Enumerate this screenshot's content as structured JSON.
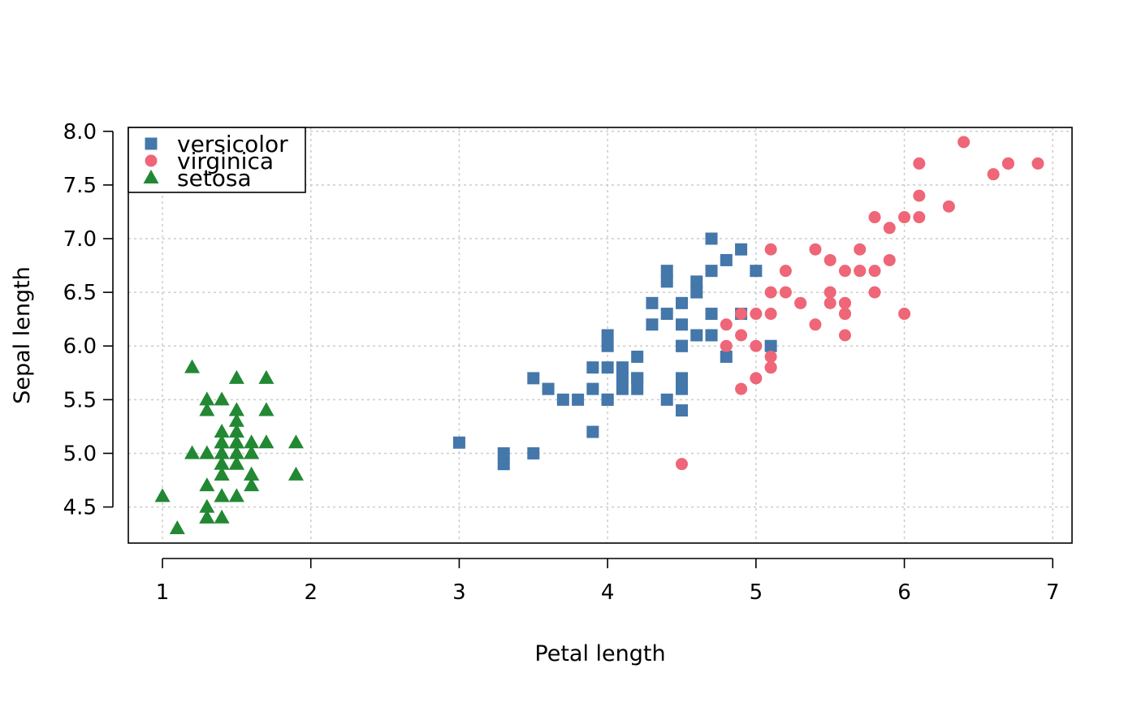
{
  "chart_data": {
    "type": "scatter",
    "title": "",
    "xlabel": "Petal length",
    "ylabel": "Sepal length",
    "xlim": [
      0.77,
      7.13
    ],
    "ylim": [
      4.164,
      8.036
    ],
    "xticks": [
      1,
      2,
      3,
      4,
      5,
      6,
      7
    ],
    "xtick_labels": [
      "1",
      "2",
      "3",
      "4",
      "5",
      "6",
      "7"
    ],
    "yticks": [
      4.5,
      5.0,
      5.5,
      6.0,
      6.5,
      7.0,
      7.5,
      8.0
    ],
    "ytick_labels": [
      "4.5",
      "5.0",
      "5.5",
      "6.0",
      "6.5",
      "7.0",
      "7.5",
      "8.0"
    ],
    "grid": true,
    "legend": {
      "position": "top-left",
      "entries": [
        "versicolor",
        "virginica",
        "setosa"
      ]
    },
    "series": [
      {
        "name": "versicolor",
        "marker": "square",
        "color": "#4477aa",
        "points": [
          [
            4.7,
            7.0
          ],
          [
            4.5,
            6.4
          ],
          [
            4.9,
            6.9
          ],
          [
            4.0,
            5.5
          ],
          [
            4.6,
            6.5
          ],
          [
            4.5,
            5.7
          ],
          [
            4.7,
            6.3
          ],
          [
            3.3,
            4.9
          ],
          [
            4.6,
            6.6
          ],
          [
            3.9,
            5.2
          ],
          [
            3.5,
            5.0
          ],
          [
            4.2,
            5.9
          ],
          [
            4.0,
            6.0
          ],
          [
            4.7,
            6.1
          ],
          [
            3.6,
            5.6
          ],
          [
            4.4,
            6.7
          ],
          [
            4.5,
            5.6
          ],
          [
            4.1,
            5.8
          ],
          [
            4.5,
            6.2
          ],
          [
            3.9,
            5.6
          ],
          [
            4.8,
            5.9
          ],
          [
            4.0,
            6.1
          ],
          [
            4.9,
            6.3
          ],
          [
            4.7,
            6.1
          ],
          [
            4.3,
            6.4
          ],
          [
            4.4,
            6.6
          ],
          [
            4.8,
            6.8
          ],
          [
            5.0,
            6.7
          ],
          [
            4.5,
            6.0
          ],
          [
            3.5,
            5.7
          ],
          [
            3.8,
            5.5
          ],
          [
            3.7,
            5.5
          ],
          [
            3.9,
            5.8
          ],
          [
            5.1,
            6.0
          ],
          [
            4.5,
            5.4
          ],
          [
            4.5,
            6.0
          ],
          [
            4.7,
            6.7
          ],
          [
            4.4,
            6.3
          ],
          [
            4.1,
            5.6
          ],
          [
            4.0,
            5.5
          ],
          [
            4.4,
            5.5
          ],
          [
            4.6,
            6.1
          ],
          [
            4.0,
            5.8
          ],
          [
            3.3,
            5.0
          ],
          [
            4.2,
            5.6
          ],
          [
            4.2,
            5.7
          ],
          [
            4.2,
            5.7
          ],
          [
            4.3,
            6.2
          ],
          [
            3.0,
            5.1
          ],
          [
            4.1,
            5.7
          ]
        ]
      },
      {
        "name": "virginica",
        "marker": "circle",
        "color": "#ee6677",
        "points": [
          [
            6.0,
            6.3
          ],
          [
            5.1,
            5.8
          ],
          [
            5.9,
            7.1
          ],
          [
            5.6,
            6.3
          ],
          [
            5.8,
            6.5
          ],
          [
            6.6,
            7.6
          ],
          [
            4.5,
            4.9
          ],
          [
            6.3,
            7.3
          ],
          [
            5.8,
            6.7
          ],
          [
            6.1,
            7.2
          ],
          [
            5.1,
            6.5
          ],
          [
            5.3,
            6.4
          ],
          [
            5.5,
            6.8
          ],
          [
            5.0,
            5.7
          ],
          [
            5.1,
            5.8
          ],
          [
            5.3,
            6.4
          ],
          [
            5.5,
            6.5
          ],
          [
            6.7,
            7.7
          ],
          [
            6.9,
            7.7
          ],
          [
            5.0,
            6.0
          ],
          [
            5.7,
            6.9
          ],
          [
            4.9,
            5.6
          ],
          [
            6.7,
            7.7
          ],
          [
            4.9,
            6.3
          ],
          [
            5.7,
            6.7
          ],
          [
            6.0,
            7.2
          ],
          [
            4.8,
            6.2
          ],
          [
            4.9,
            6.1
          ],
          [
            5.6,
            6.4
          ],
          [
            5.8,
            7.2
          ],
          [
            6.1,
            7.4
          ],
          [
            6.4,
            7.9
          ],
          [
            5.6,
            6.4
          ],
          [
            5.1,
            6.3
          ],
          [
            5.6,
            6.1
          ],
          [
            6.1,
            7.7
          ],
          [
            5.6,
            6.3
          ],
          [
            5.5,
            6.4
          ],
          [
            4.8,
            6.0
          ],
          [
            5.4,
            6.9
          ],
          [
            5.6,
            6.7
          ],
          [
            5.1,
            6.9
          ],
          [
            5.1,
            5.8
          ],
          [
            5.9,
            6.8
          ],
          [
            5.7,
            6.7
          ],
          [
            5.2,
            6.7
          ],
          [
            5.0,
            6.3
          ],
          [
            5.2,
            6.5
          ],
          [
            5.4,
            6.2
          ],
          [
            5.1,
            5.9
          ]
        ]
      },
      {
        "name": "setosa",
        "marker": "triangle",
        "color": "#228833",
        "points": [
          [
            1.4,
            5.1
          ],
          [
            1.4,
            4.9
          ],
          [
            1.3,
            4.7
          ],
          [
            1.5,
            4.6
          ],
          [
            1.4,
            5.0
          ],
          [
            1.7,
            5.4
          ],
          [
            1.4,
            4.6
          ],
          [
            1.5,
            5.0
          ],
          [
            1.4,
            4.4
          ],
          [
            1.5,
            4.9
          ],
          [
            1.5,
            5.4
          ],
          [
            1.6,
            4.8
          ],
          [
            1.4,
            4.8
          ],
          [
            1.1,
            4.3
          ],
          [
            1.2,
            5.8
          ],
          [
            1.5,
            5.7
          ],
          [
            1.3,
            5.4
          ],
          [
            1.4,
            5.1
          ],
          [
            1.7,
            5.7
          ],
          [
            1.5,
            5.1
          ],
          [
            1.7,
            5.4
          ],
          [
            1.5,
            5.1
          ],
          [
            1.0,
            4.6
          ],
          [
            1.7,
            5.1
          ],
          [
            1.9,
            4.8
          ],
          [
            1.6,
            5.0
          ],
          [
            1.6,
            5.0
          ],
          [
            1.5,
            5.2
          ],
          [
            1.4,
            5.2
          ],
          [
            1.6,
            4.7
          ],
          [
            1.6,
            4.8
          ],
          [
            1.5,
            5.4
          ],
          [
            1.5,
            5.2
          ],
          [
            1.4,
            5.5
          ],
          [
            1.5,
            4.9
          ],
          [
            1.2,
            5.0
          ],
          [
            1.3,
            5.5
          ],
          [
            1.4,
            4.9
          ],
          [
            1.3,
            4.4
          ],
          [
            1.5,
            5.1
          ],
          [
            1.3,
            5.0
          ],
          [
            1.3,
            4.5
          ],
          [
            1.3,
            4.4
          ],
          [
            1.6,
            5.0
          ],
          [
            1.9,
            5.1
          ],
          [
            1.4,
            4.8
          ],
          [
            1.6,
            5.1
          ],
          [
            1.4,
            4.6
          ],
          [
            1.5,
            5.3
          ],
          [
            1.4,
            5.0
          ]
        ]
      }
    ]
  }
}
